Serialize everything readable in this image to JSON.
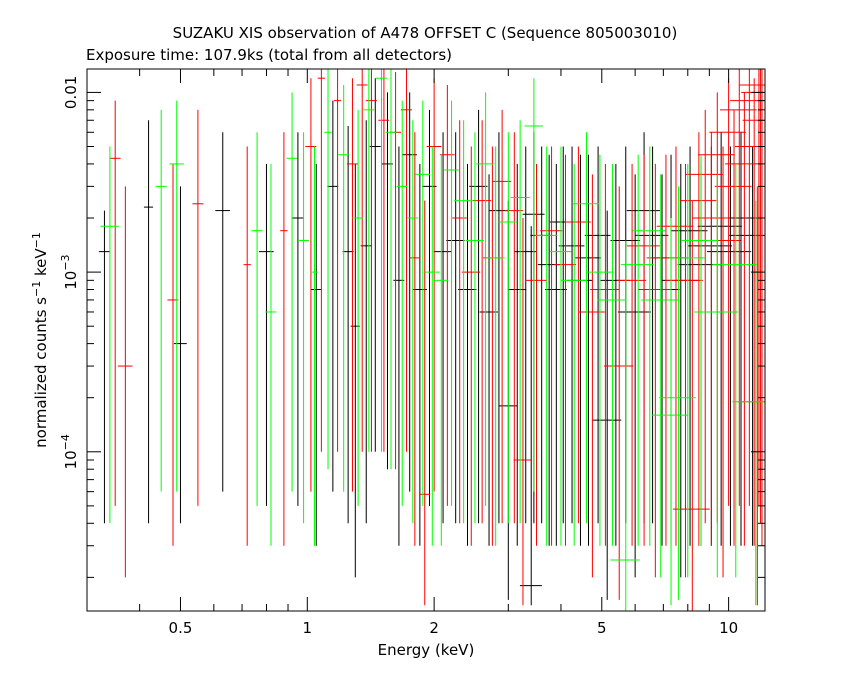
{
  "chart_data": {
    "type": "scatter",
    "title": "SUZAKU XIS observation of A478 OFFSET C (Sequence 805003010)",
    "subtitle": "Exposure time: 107.9ks (total from all detectors)",
    "xlabel": "Energy (keV)",
    "ylabel_main": "normalized counts s",
    "ylabel_exp1": "−1",
    "ylabel_mid": " keV",
    "ylabel_exp2": "−1",
    "xscale": "log",
    "yscale": "log",
    "xlim": [
      0.3,
      12.2
    ],
    "ylim": [
      1.3e-05,
      0.0135
    ],
    "xticks": [
      {
        "value": 0.5,
        "label": "0.5"
      },
      {
        "value": 1,
        "label": "1"
      },
      {
        "value": 2,
        "label": "2"
      },
      {
        "value": 5,
        "label": "5"
      },
      {
        "value": 10,
        "label": "10"
      }
    ],
    "yticks": [
      {
        "value": 0.01,
        "label": "0.01",
        "exp": ""
      },
      {
        "value": 0.001,
        "label": "10",
        "exp": "−3"
      },
      {
        "value": 0.0001,
        "label": "10",
        "exp": "−4"
      }
    ],
    "grid": false,
    "legend": "none",
    "series": [
      {
        "color": "#000000",
        "points": [
          [
            0.33,
            0.0013,
            0.03,
            0.0022,
            4e-05
          ],
          [
            0.42,
            0.0023,
            0.025,
            0.007,
            4e-05
          ],
          [
            0.5,
            0.0004,
            0.035,
            0.003,
            4e-05
          ],
          [
            0.63,
            0.0022,
            0.04,
            0.006,
            6e-05
          ],
          [
            0.8,
            0.0013,
            0.04,
            0.004,
            5e-05
          ],
          [
            0.95,
            0.002,
            0.03,
            0.006,
            5e-05
          ],
          [
            1.05,
            0.0008,
            0.03,
            0.004,
            3e-05
          ],
          [
            1.15,
            0.003,
            0.03,
            0.009,
            6e-05
          ],
          [
            1.25,
            0.0013,
            0.03,
            0.0065,
            4e-05
          ],
          [
            1.3,
            0.0005,
            0.025,
            0.004,
            2e-05
          ],
          [
            1.38,
            0.0014,
            0.03,
            0.007,
            4e-05
          ],
          [
            1.45,
            0.005,
            0.03,
            0.012,
            0.0001
          ],
          [
            1.55,
            0.004,
            0.03,
            0.01,
            8e-05
          ],
          [
            1.65,
            0.0009,
            0.03,
            0.005,
            3e-05
          ],
          [
            1.75,
            0.0045,
            0.04,
            0.01,
            6e-05
          ],
          [
            1.85,
            0.0008,
            0.04,
            0.004,
            3e-05
          ],
          [
            1.95,
            0.003,
            0.04,
            0.008,
            5e-05
          ],
          [
            2.1,
            0.0013,
            0.05,
            0.006,
            4e-05
          ],
          [
            2.25,
            0.0015,
            0.05,
            0.006,
            4e-05
          ],
          [
            2.4,
            0.0008,
            0.05,
            0.004,
            3e-05
          ],
          [
            2.55,
            0.003,
            0.05,
            0.008,
            4e-05
          ],
          [
            2.7,
            0.0006,
            0.05,
            0.0035,
            3e-05
          ],
          [
            2.85,
            0.0022,
            0.05,
            0.006,
            4e-05
          ],
          [
            3.0,
            0.00018,
            0.05,
            0.0025,
            1.5e-05
          ],
          [
            3.15,
            0.0008,
            0.05,
            0.004,
            3e-05
          ],
          [
            3.3,
            0.0013,
            0.06,
            0.005,
            4e-05
          ],
          [
            3.45,
            0.0021,
            0.06,
            0.006,
            4e-05
          ],
          [
            3.6,
            0.0016,
            0.06,
            0.005,
            4e-05
          ],
          [
            3.75,
            0.0011,
            0.06,
            0.0045,
            3e-05
          ],
          [
            3.9,
            0.0008,
            0.06,
            0.004,
            3e-05
          ],
          [
            4.05,
            0.0019,
            0.07,
            0.005,
            4e-05
          ],
          [
            4.25,
            0.0014,
            0.07,
            0.005,
            4e-05
          ],
          [
            4.45,
            0.0009,
            0.07,
            0.0045,
            3e-05
          ],
          [
            4.65,
            0.0012,
            0.07,
            0.0045,
            3e-05
          ],
          [
            4.9,
            0.0016,
            0.07,
            0.005,
            4e-05
          ],
          [
            5.15,
            0.00015,
            0.08,
            0.0022,
            1.5e-05
          ],
          [
            5.4,
            0.0009,
            0.08,
            0.004,
            3e-05
          ],
          [
            5.7,
            0.0015,
            0.08,
            0.005,
            4e-05
          ],
          [
            6.0,
            0.0006,
            0.09,
            0.0035,
            2e-05
          ],
          [
            6.3,
            0.0022,
            0.09,
            0.006,
            4e-05
          ],
          [
            6.6,
            0.0016,
            0.09,
            0.005,
            4e-05
          ],
          [
            6.95,
            0.0008,
            0.1,
            0.0035,
            3e-05
          ],
          [
            7.3,
            0.0012,
            0.1,
            0.0045,
            3e-05
          ],
          [
            7.7,
            0.0009,
            0.1,
            0.004,
            2e-05
          ],
          [
            8.1,
            0.0017,
            0.1,
            0.005,
            3e-05
          ],
          [
            8.6,
            0.0011,
            0.12,
            0.004,
            3e-05
          ],
          [
            9.1,
            0.0014,
            0.12,
            0.005,
            3e-05
          ],
          [
            9.6,
            0.0018,
            0.12,
            0.006,
            3e-05
          ],
          [
            10.1,
            0.0013,
            0.12,
            0.005,
            3e-05
          ],
          [
            10.7,
            0.002,
            0.12,
            0.006,
            3e-05
          ],
          [
            11.4,
            0.0016,
            0.12,
            0.005,
            3e-05
          ],
          [
            3.4,
            1.8e-05,
            0.06,
            0.0018,
            1.4e-05
          ]
        ]
      },
      {
        "color": "#ff0000",
        "points": [
          [
            0.35,
            0.0043,
            0.03,
            0.009,
            5e-05
          ],
          [
            0.37,
            0.0003,
            0.04,
            0.003,
            2e-05
          ],
          [
            0.48,
            0.0007,
            0.03,
            0.004,
            3e-05
          ],
          [
            0.55,
            0.0024,
            0.03,
            0.008,
            5e-05
          ],
          [
            0.72,
            0.0011,
            0.02,
            0.005,
            3e-05
          ],
          [
            0.88,
            0.0017,
            0.02,
            0.006,
            3e-05
          ],
          [
            1.02,
            0.005,
            0.03,
            0.012,
            6e-05
          ],
          [
            1.08,
            0.012,
            0.02,
            0.0135,
            0.0001
          ],
          [
            1.18,
            0.009,
            0.02,
            0.0135,
            0.0001
          ],
          [
            1.28,
            0.004,
            0.03,
            0.012,
            6e-05
          ],
          [
            1.35,
            0.011,
            0.03,
            0.0135,
            0.0001
          ],
          [
            1.42,
            0.009,
            0.03,
            0.0135,
            0.0001
          ],
          [
            1.52,
            0.007,
            0.03,
            0.0135,
            0.0001
          ],
          [
            1.62,
            0.006,
            0.03,
            0.013,
            8e-05
          ],
          [
            1.72,
            0.008,
            0.03,
            0.0135,
            0.0001
          ],
          [
            1.8,
            0.0012,
            0.03,
            0.006,
            3e-05
          ],
          [
            1.9,
            5.8e-05,
            0.03,
            0.0025,
            1.4e-05
          ],
          [
            2.0,
            0.005,
            0.04,
            0.012,
            6e-05
          ],
          [
            2.15,
            0.0045,
            0.04,
            0.011,
            5e-05
          ],
          [
            2.3,
            0.002,
            0.04,
            0.007,
            4e-05
          ],
          [
            2.45,
            0.001,
            0.05,
            0.005,
            3e-05
          ],
          [
            2.6,
            0.0025,
            0.05,
            0.007,
            4e-05
          ],
          [
            2.75,
            0.0012,
            0.05,
            0.005,
            3e-05
          ],
          [
            2.9,
            0.0032,
            0.05,
            0.008,
            4e-05
          ],
          [
            3.1,
            0.0022,
            0.05,
            0.006,
            4e-05
          ],
          [
            3.25,
            9e-05,
            0.05,
            0.002,
            1.4e-05
          ],
          [
            3.5,
            0.0009,
            0.06,
            0.004,
            3e-05
          ],
          [
            3.8,
            0.0017,
            0.06,
            0.005,
            3e-05
          ],
          [
            4.1,
            0.0011,
            0.06,
            0.0045,
            3e-05
          ],
          [
            4.4,
            0.0019,
            0.07,
            0.005,
            4e-05
          ],
          [
            4.75,
            0.0006,
            0.07,
            0.0035,
            2e-05
          ],
          [
            5.1,
            0.0008,
            0.08,
            0.004,
            3e-05
          ],
          [
            5.5,
            0.0003,
            0.08,
            0.003,
            1.5e-05
          ],
          [
            5.9,
            0.0009,
            0.08,
            0.004,
            3e-05
          ],
          [
            6.3,
            0.0014,
            0.09,
            0.0045,
            3e-05
          ],
          [
            6.7,
            0.0008,
            0.09,
            0.004,
            2e-05
          ],
          [
            7.1,
            0.0012,
            0.1,
            0.0045,
            3e-05
          ],
          [
            7.5,
            0.0018,
            0.1,
            0.005,
            3e-05
          ],
          [
            7.9,
            0.0009,
            0.1,
            0.004,
            2e-05
          ],
          [
            8.2,
            4.8e-05,
            0.1,
            0.0025,
            1.3e-05
          ],
          [
            8.5,
            0.0025,
            0.1,
            0.006,
            3e-05
          ],
          [
            8.8,
            0.0035,
            0.1,
            0.008,
            4e-05
          ],
          [
            9.1,
            0.002,
            0.1,
            0.006,
            3e-05
          ],
          [
            9.4,
            0.0045,
            0.1,
            0.01,
            4e-05
          ],
          [
            9.7,
            0.0015,
            0.1,
            0.005,
            2e-05
          ],
          [
            10.0,
            0.006,
            0.1,
            0.012,
            5e-05
          ],
          [
            10.3,
            0.003,
            0.1,
            0.008,
            3e-05
          ],
          [
            10.6,
            0.008,
            0.1,
            0.0135,
            5e-05
          ],
          [
            10.9,
            0.004,
            0.1,
            0.01,
            3e-05
          ],
          [
            11.2,
            0.009,
            0.1,
            0.0135,
            5e-05
          ],
          [
            11.5,
            0.005,
            0.1,
            0.012,
            3e-05
          ],
          [
            11.8,
            0.011,
            0.1,
            0.0135,
            5e-05
          ],
          [
            12.0,
            0.007,
            0.1,
            0.0135,
            3e-05
          ],
          [
            11.7,
            0.00019,
            0.1,
            0.003,
            1.4e-05
          ],
          [
            11.9,
            0.01,
            0.1,
            0.0135,
            4e-05
          ]
        ]
      },
      {
        "color": "#00ff00",
        "points": [
          [
            0.34,
            0.0018,
            0.05,
            0.005,
            4e-05
          ],
          [
            0.45,
            0.003,
            0.03,
            0.008,
            6e-05
          ],
          [
            0.49,
            0.004,
            0.04,
            0.009,
            6e-05
          ],
          [
            0.76,
            0.0017,
            0.03,
            0.006,
            5e-05
          ],
          [
            0.82,
            0.0006,
            0.03,
            0.004,
            3e-05
          ],
          [
            0.92,
            0.0043,
            0.03,
            0.01,
            6e-05
          ],
          [
            0.98,
            0.0015,
            0.03,
            0.006,
            4e-05
          ],
          [
            1.04,
            0.001,
            0.02,
            0.005,
            3e-05
          ],
          [
            1.12,
            0.006,
            0.02,
            0.0135,
            8e-05
          ],
          [
            1.22,
            0.0045,
            0.03,
            0.011,
            6e-05
          ],
          [
            1.32,
            0.002,
            0.03,
            0.008,
            5e-05
          ],
          [
            1.4,
            0.008,
            0.03,
            0.0135,
            0.0001
          ],
          [
            1.5,
            0.012,
            0.03,
            0.0135,
            0.0001
          ],
          [
            1.58,
            0.006,
            0.03,
            0.0135,
            8e-05
          ],
          [
            1.68,
            0.003,
            0.03,
            0.009,
            5e-05
          ],
          [
            1.78,
            0.002,
            0.03,
            0.007,
            4e-05
          ],
          [
            1.88,
            0.0035,
            0.04,
            0.009,
            5e-05
          ],
          [
            1.98,
            0.001,
            0.04,
            0.005,
            3e-05
          ],
          [
            2.08,
            0.0009,
            0.04,
            0.0045,
            3e-05
          ],
          [
            2.2,
            0.0037,
            0.04,
            0.009,
            5e-05
          ],
          [
            2.35,
            0.0025,
            0.05,
            0.007,
            4e-05
          ],
          [
            2.5,
            0.0015,
            0.05,
            0.006,
            4e-05
          ],
          [
            2.65,
            0.004,
            0.05,
            0.01,
            5e-05
          ],
          [
            2.8,
            0.0012,
            0.05,
            0.005,
            3e-05
          ],
          [
            3.0,
            0.0019,
            0.05,
            0.006,
            4e-05
          ],
          [
            3.2,
            0.0026,
            0.05,
            0.007,
            4e-05
          ],
          [
            3.45,
            0.0065,
            0.05,
            0.012,
            6e-05
          ],
          [
            3.7,
            0.0016,
            0.06,
            0.005,
            3e-05
          ],
          [
            4.0,
            0.0013,
            0.06,
            0.005,
            3e-05
          ],
          [
            4.3,
            0.0009,
            0.07,
            0.004,
            3e-05
          ],
          [
            4.6,
            0.0024,
            0.07,
            0.006,
            4e-05
          ],
          [
            4.95,
            0.001,
            0.07,
            0.0045,
            3e-05
          ],
          [
            5.3,
            0.0007,
            0.08,
            0.004,
            3e-05
          ],
          [
            5.7,
            2.5e-05,
            0.08,
            0.0015,
            1.3e-05
          ],
          [
            6.1,
            0.0011,
            0.09,
            0.0045,
            3e-05
          ],
          [
            6.5,
            0.0017,
            0.09,
            0.005,
            3e-05
          ],
          [
            6.9,
            0.0007,
            0.1,
            0.0035,
            2e-05
          ],
          [
            7.3,
            0.00016,
            0.1,
            0.002,
            1.4e-05
          ],
          [
            7.6,
            0.0002,
            0.1,
            0.003,
            1.5e-05
          ],
          [
            8.0,
            0.0012,
            0.1,
            0.004,
            2e-05
          ],
          [
            8.6,
            0.0015,
            0.1,
            0.0045,
            3e-05
          ],
          [
            9.4,
            0.0006,
            0.12,
            0.0035,
            2e-05
          ],
          [
            10.4,
            0.0011,
            0.12,
            0.004,
            2e-05
          ],
          [
            11.6,
            0.00019,
            0.12,
            0.0025,
            1.4e-05
          ]
        ]
      }
    ]
  }
}
